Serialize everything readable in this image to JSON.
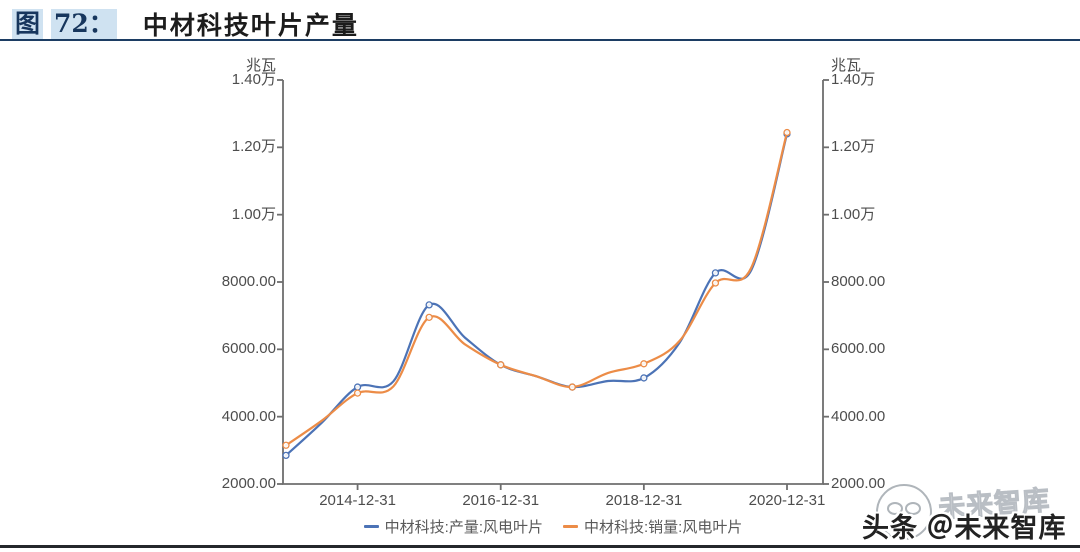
{
  "header": {
    "figure_label": "图",
    "figure_number": "72：",
    "title": "中材科技叶片产量"
  },
  "chart_data": {
    "type": "line",
    "title": "中材科技叶片产量",
    "y_unit_left": "兆瓦",
    "y_unit_right": "兆瓦",
    "ylim": [
      2000,
      14000
    ],
    "grid": false,
    "legend_position": "bottom",
    "y_tick_labels": [
      "1.40万",
      "1.20万",
      "1.00万",
      "8000.00",
      "6000.00",
      "4000.00",
      "2000.00"
    ],
    "y_tick_values": [
      14000,
      12000,
      10000,
      8000,
      6000,
      4000,
      2000
    ],
    "x_tick_labels": [
      "2014-12-31",
      "2016-12-31",
      "2018-12-31",
      "2020-12-31"
    ],
    "x": [
      "2013-12-31",
      "2014-06-30",
      "2014-12-31",
      "2015-06-30",
      "2015-12-31",
      "2016-06-30",
      "2016-12-31",
      "2017-06-30",
      "2017-12-31",
      "2018-06-30",
      "2018-12-31",
      "2019-06-30",
      "2019-12-31",
      "2020-06-30",
      "2020-12-31"
    ],
    "series": [
      {
        "name": "中材科技:产量:风电叶片",
        "color": "#4c73b6",
        "values": [
          2850,
          3820,
          4880,
          5050,
          7320,
          6350,
          5540,
          5200,
          4880,
          5060,
          5150,
          6200,
          8270,
          8350,
          12400
        ]
      },
      {
        "name": "中材科技:销量:风电叶片",
        "color": "#ec8c47",
        "values": [
          3150,
          3880,
          4700,
          4900,
          6950,
          6150,
          5540,
          5200,
          4880,
          5300,
          5570,
          6250,
          7970,
          8420,
          12440
        ]
      }
    ]
  },
  "watermark": {
    "badge_text": "头条 ＠未来智库",
    "ghost_text": "未来智库"
  },
  "colors": {
    "header_accent": "#17365d",
    "header_highlight": "#cfe2f1",
    "axis": "#6e6e6e",
    "label": "#4d4d4d"
  }
}
